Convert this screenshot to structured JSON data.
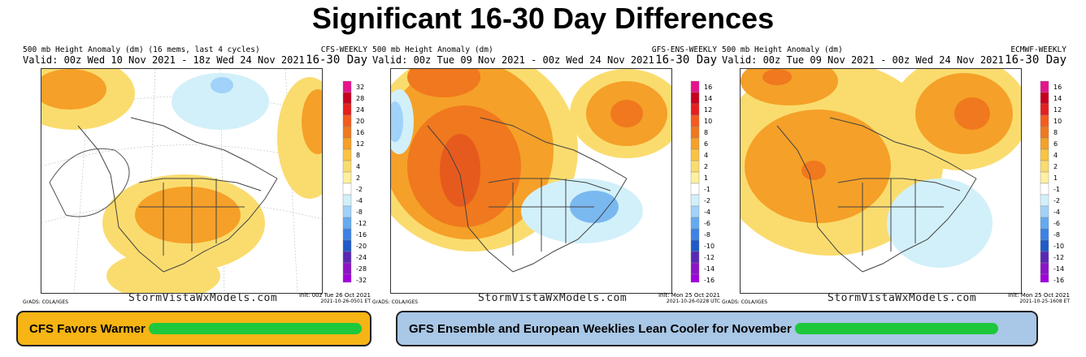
{
  "title": "Significant 16-30 Day Differences",
  "panels": [
    {
      "header_line1": "500 mb Height Anomaly (dm) (16 mems, last 4 cycles)",
      "header_line2": "Valid: 00z Wed 10 Nov 2021 - 18z Wed 24 Nov 2021",
      "model": "CFS-WEEKLY",
      "range": "16-30 Day",
      "brand": "StormVistaWxModels.com",
      "init": "Init: 00z Tue 26 Oct 2021",
      "init_stamp": "2021-10-26-0501 ET",
      "source": "GrADS: COLA/IGES",
      "scale_labels": [
        "32",
        "28",
        "24",
        "20",
        "16",
        "12",
        "8",
        "4",
        "2",
        "-2",
        "-4",
        "-8",
        "-12",
        "-16",
        "-20",
        "-24",
        "-28",
        "-32"
      ]
    },
    {
      "header_line1": "500 mb Height Anomaly (dm)",
      "header_line2": "Valid: 00z Tue 09 Nov 2021 - 00z Wed 24 Nov 2021",
      "model": "GFS-ENS-WEEKLY",
      "range": "16-30 Day",
      "brand": "StormVistaWxModels.com",
      "init": "Init: Mon 25 Oct 2021",
      "init_stamp": "2021-10-26-0228 UTC",
      "source": "GrADS: COLA/IGES",
      "scale_labels": [
        "16",
        "14",
        "12",
        "10",
        "8",
        "6",
        "4",
        "2",
        "1",
        "-1",
        "-2",
        "-4",
        "-6",
        "-8",
        "-10",
        "-12",
        "-14",
        "-16"
      ]
    },
    {
      "header_line1": "500 mb Height Anomaly (dm)",
      "header_line2": "Valid: 00z Tue 09 Nov 2021 - 00z Wed 24 Nov 2021",
      "model": "ECMWF-WEEKLY",
      "range": "16-30 Day",
      "brand": "StormVistaWxModels.com",
      "init": "Init: Mon 25 Oct 2021",
      "init_stamp": "2021-10-25-1608 ET",
      "source": "GrADS: COLA/IGES",
      "scale_labels": [
        "16",
        "14",
        "12",
        "10",
        "8",
        "6",
        "4",
        "2",
        "1",
        "-1",
        "-2",
        "-4",
        "-6",
        "-8",
        "-10",
        "-12",
        "-14",
        "-16"
      ]
    }
  ],
  "scale_colors": [
    "#e6148c",
    "#c8001e",
    "#e61e1e",
    "#f55a1e",
    "#f0781e",
    "#f5a028",
    "#fac341",
    "#fadc6e",
    "#fff0a0",
    "#ffffff",
    "#d2f0fa",
    "#a0d2fa",
    "#64aaf0",
    "#3c82e6",
    "#1e5ac8",
    "#5a28b4",
    "#8c14c8",
    "#a000dc"
  ],
  "caption_left": "CFS Favors Warmer",
  "caption_right": "GFS Ensemble and European Weeklies Lean Cooler for November",
  "colors": {
    "caption_left_bg": "#f6b415",
    "caption_right_bg": "#a9c7e6",
    "redaction": "#1ec83c"
  }
}
